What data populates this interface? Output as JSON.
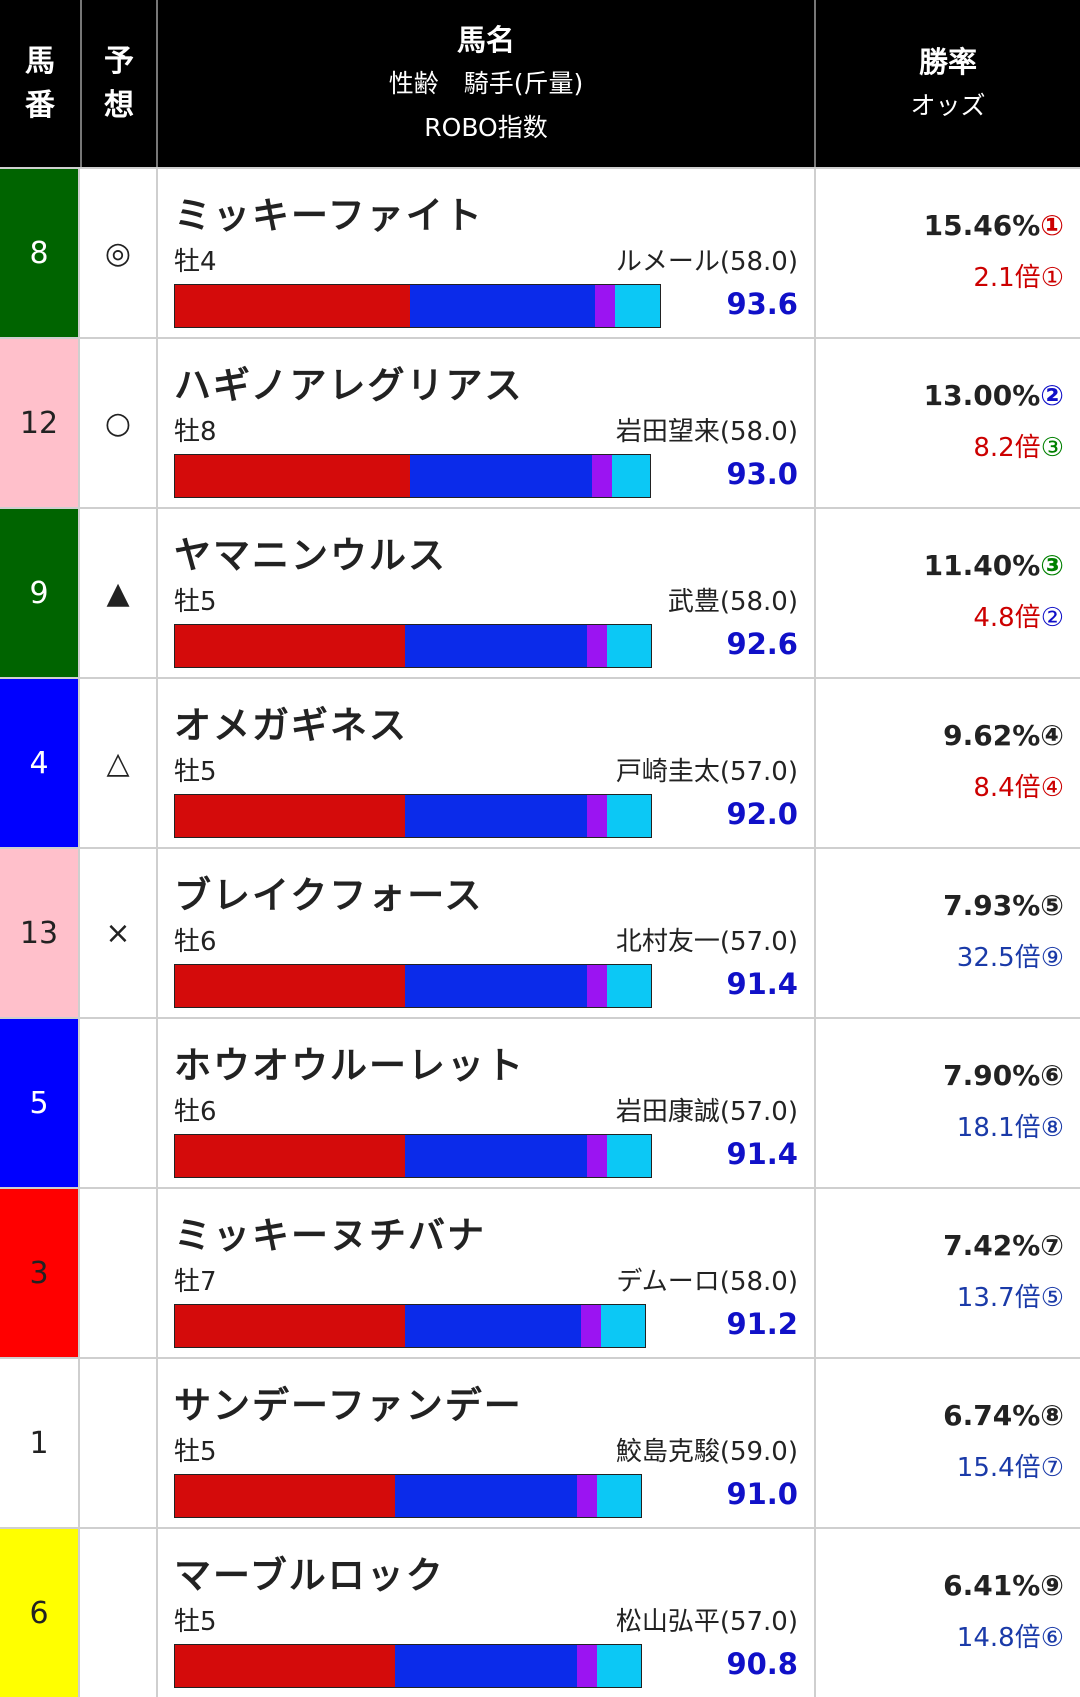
{
  "header": {
    "col_num": [
      "馬",
      "番"
    ],
    "col_mark": [
      "予",
      "想"
    ],
    "col_name": "馬名",
    "col_name_sub": "性齢　騎手(斤量)",
    "col_name_sub2": "ROBO指数",
    "col_win": "勝率",
    "col_odds": "オッズ"
  },
  "colors": {
    "bar_red": "#d40b0b",
    "bar_blue": "#0b2bea",
    "bar_purple": "#9b14f2",
    "bar_cyan": "#0cc8f5",
    "index_blue": "#1010c8"
  },
  "rows": [
    {
      "num": "8",
      "frame_color": "#006400",
      "num_color": "#ffffff",
      "mark": "◎",
      "name": "ミッキーファイト",
      "sexage": "牡4",
      "jockey": "ルメール(58.0)",
      "index": "93.6",
      "bar": [
        0.42,
        0.33,
        0.035,
        0.08
      ],
      "winrate": "15.46%",
      "win_rank": "①",
      "win_rank_color": "#cc0000",
      "odds": "2.1倍",
      "odds_rank": "①",
      "odds_color": "#cc0000"
    },
    {
      "num": "12",
      "frame_color": "#ffc0cb",
      "num_color": "#222222",
      "mark": "○",
      "name": "ハギノアレグリアス",
      "sexage": "牡8",
      "jockey": "岩田望来(58.0)",
      "index": "93.0",
      "bar": [
        0.42,
        0.325,
        0.035,
        0.068
      ],
      "winrate": "13.00%",
      "win_rank": "②",
      "win_rank_color": "#1010c8",
      "odds": "8.2倍",
      "odds_rank": "③",
      "odds_color": "#cc0000",
      "odds_rank_color": "#008000"
    },
    {
      "num": "9",
      "frame_color": "#006400",
      "num_color": "#ffffff",
      "mark": "▲",
      "name": "ヤマニンウルス",
      "sexage": "牡5",
      "jockey": "武豊(58.0)",
      "index": "92.6",
      "bar": [
        0.41,
        0.325,
        0.035,
        0.078
      ],
      "winrate": "11.40%",
      "win_rank": "③",
      "win_rank_color": "#008000",
      "odds": "4.8倍",
      "odds_rank": "②",
      "odds_color": "#cc0000",
      "odds_rank_color": "#1010c8"
    },
    {
      "num": "4",
      "frame_color": "#0000ff",
      "num_color": "#ffffff",
      "mark": "△",
      "name": "オメガギネス",
      "sexage": "牡5",
      "jockey": "戸崎圭太(57.0)",
      "index": "92.0",
      "bar": [
        0.41,
        0.325,
        0.035,
        0.078
      ],
      "winrate": "9.62%",
      "win_rank": "④",
      "win_rank_color": "#222222",
      "odds": "8.4倍",
      "odds_rank": "④",
      "odds_color": "#cc0000"
    },
    {
      "num": "13",
      "frame_color": "#ffc0cb",
      "num_color": "#222222",
      "mark": "×",
      "name": "ブレイクフォース",
      "sexage": "牡6",
      "jockey": "北村友一(57.0)",
      "index": "91.4",
      "bar": [
        0.41,
        0.325,
        0.035,
        0.078
      ],
      "winrate": "7.93%",
      "win_rank": "⑤",
      "win_rank_color": "#222222",
      "odds": "32.5倍",
      "odds_rank": "⑨",
      "odds_color": "#1a3aa8"
    },
    {
      "num": "5",
      "frame_color": "#0000ff",
      "num_color": "#ffffff",
      "mark": "",
      "name": "ホウオウルーレット",
      "sexage": "牡6",
      "jockey": "岩田康誠(57.0)",
      "index": "91.4",
      "bar": [
        0.41,
        0.325,
        0.035,
        0.078
      ],
      "winrate": "7.90%",
      "win_rank": "⑥",
      "win_rank_color": "#222222",
      "odds": "18.1倍",
      "odds_rank": "⑧",
      "odds_color": "#1a3aa8"
    },
    {
      "num": "3",
      "frame_color": "#ff0000",
      "num_color": "#222222",
      "mark": "",
      "name": "ミッキーヌチバナ",
      "sexage": "牡7",
      "jockey": "デムーロ(58.0)",
      "index": "91.2",
      "bar": [
        0.41,
        0.315,
        0.035,
        0.078
      ],
      "winrate": "7.42%",
      "win_rank": "⑦",
      "win_rank_color": "#222222",
      "odds": "13.7倍",
      "odds_rank": "⑤",
      "odds_color": "#1a3aa8"
    },
    {
      "num": "1",
      "frame_color": "#ffffff",
      "num_color": "#222222",
      "mark": "",
      "name": "サンデーファンデー",
      "sexage": "牡5",
      "jockey": "鮫島克駿(59.0)",
      "index": "91.0",
      "bar": [
        0.392,
        0.325,
        0.035,
        0.078
      ],
      "winrate": "6.74%",
      "win_rank": "⑧",
      "win_rank_color": "#222222",
      "odds": "15.4倍",
      "odds_rank": "⑦",
      "odds_color": "#1a3aa8"
    },
    {
      "num": "6",
      "frame_color": "#ffff00",
      "num_color": "#222222",
      "mark": "",
      "name": "マーブルロック",
      "sexage": "牡5",
      "jockey": "松山弘平(57.0)",
      "index": "90.8",
      "bar": [
        0.392,
        0.325,
        0.035,
        0.078
      ],
      "winrate": "6.41%",
      "win_rank": "⑨",
      "win_rank_color": "#222222",
      "odds": "14.8倍",
      "odds_rank": "⑥",
      "odds_color": "#1a3aa8"
    }
  ]
}
